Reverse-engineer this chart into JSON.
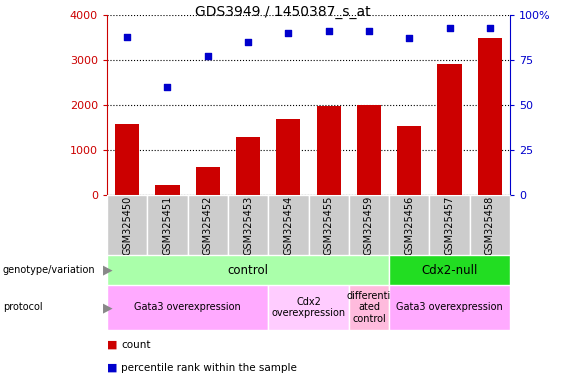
{
  "title": "GDS3949 / 1450387_s_at",
  "samples": [
    "GSM325450",
    "GSM325451",
    "GSM325452",
    "GSM325453",
    "GSM325454",
    "GSM325455",
    "GSM325459",
    "GSM325456",
    "GSM325457",
    "GSM325458"
  ],
  "counts": [
    1580,
    220,
    620,
    1300,
    1700,
    1980,
    2000,
    1540,
    2920,
    3480
  ],
  "percentile_ranks": [
    88,
    60,
    77,
    85,
    90,
    91,
    91,
    87,
    93,
    93
  ],
  "bar_color": "#cc0000",
  "dot_color": "#0000cc",
  "ylim_left": [
    0,
    4000
  ],
  "ylim_right": [
    0,
    100
  ],
  "yticks_left": [
    0,
    1000,
    2000,
    3000,
    4000
  ],
  "yticks_right": [
    0,
    25,
    50,
    75,
    100
  ],
  "genotype_groups": [
    {
      "label": "control",
      "start": 0,
      "end": 7,
      "color": "#aaffaa"
    },
    {
      "label": "Cdx2-null",
      "start": 7,
      "end": 10,
      "color": "#22dd22"
    }
  ],
  "protocol_groups": [
    {
      "label": "Gata3 overexpression",
      "start": 0,
      "end": 4,
      "color": "#ffaaff"
    },
    {
      "label": "Cdx2\noverexpression",
      "start": 4,
      "end": 6,
      "color": "#ffccff"
    },
    {
      "label": "differenti\nated\ncontrol",
      "start": 6,
      "end": 7,
      "color": "#ffbbdd"
    },
    {
      "label": "Gata3 overexpression",
      "start": 7,
      "end": 10,
      "color": "#ffaaff"
    }
  ],
  "legend_count_color": "#cc0000",
  "legend_dot_color": "#0000cc",
  "legend_count_label": "count",
  "legend_dot_label": "percentile rank within the sample",
  "tick_label_color_left": "#cc0000",
  "tick_label_color_right": "#0000cc",
  "tick_box_color": "#cccccc",
  "tick_box_edge_color": "#ffffff"
}
